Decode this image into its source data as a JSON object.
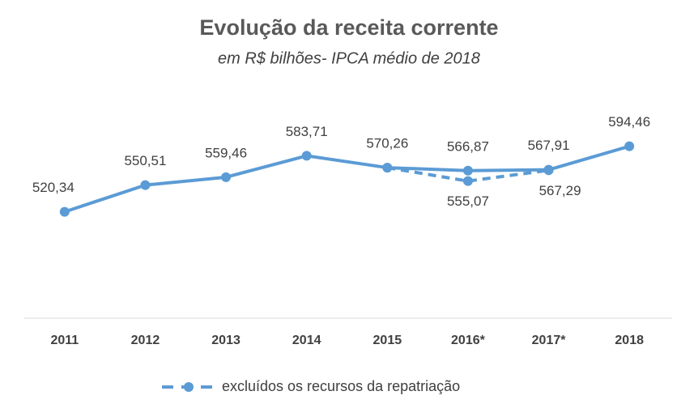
{
  "chart_data": {
    "type": "line",
    "title": "Evolução da receita corrente",
    "subtitle": "em R$ bilhões- IPCA médio de 2018",
    "categories": [
      "2011",
      "2012",
      "2013",
      "2014",
      "2015",
      "2016*",
      "2017*",
      "2018"
    ],
    "series": [
      {
        "color": "#5b9bd5",
        "dashed": false,
        "values": [
          520.34,
          550.51,
          559.46,
          583.71,
          570.26,
          566.87,
          567.91,
          594.46
        ],
        "value_labels": [
          "520,34",
          "550,51",
          "559,46",
          "583,71",
          "570,26",
          "566,87",
          "567,91",
          "594,46"
        ]
      },
      {
        "name": "excluídos os recursos da repatriação",
        "color": "#5b9bd5",
        "dashed": true,
        "values": [
          null,
          null,
          null,
          null,
          570.26,
          555.07,
          567.29,
          null
        ],
        "value_labels": [
          null,
          null,
          null,
          null,
          null,
          "555,07",
          "567,29",
          null
        ]
      }
    ],
    "ylim": [
      400,
      650
    ],
    "legend": "bottom"
  }
}
